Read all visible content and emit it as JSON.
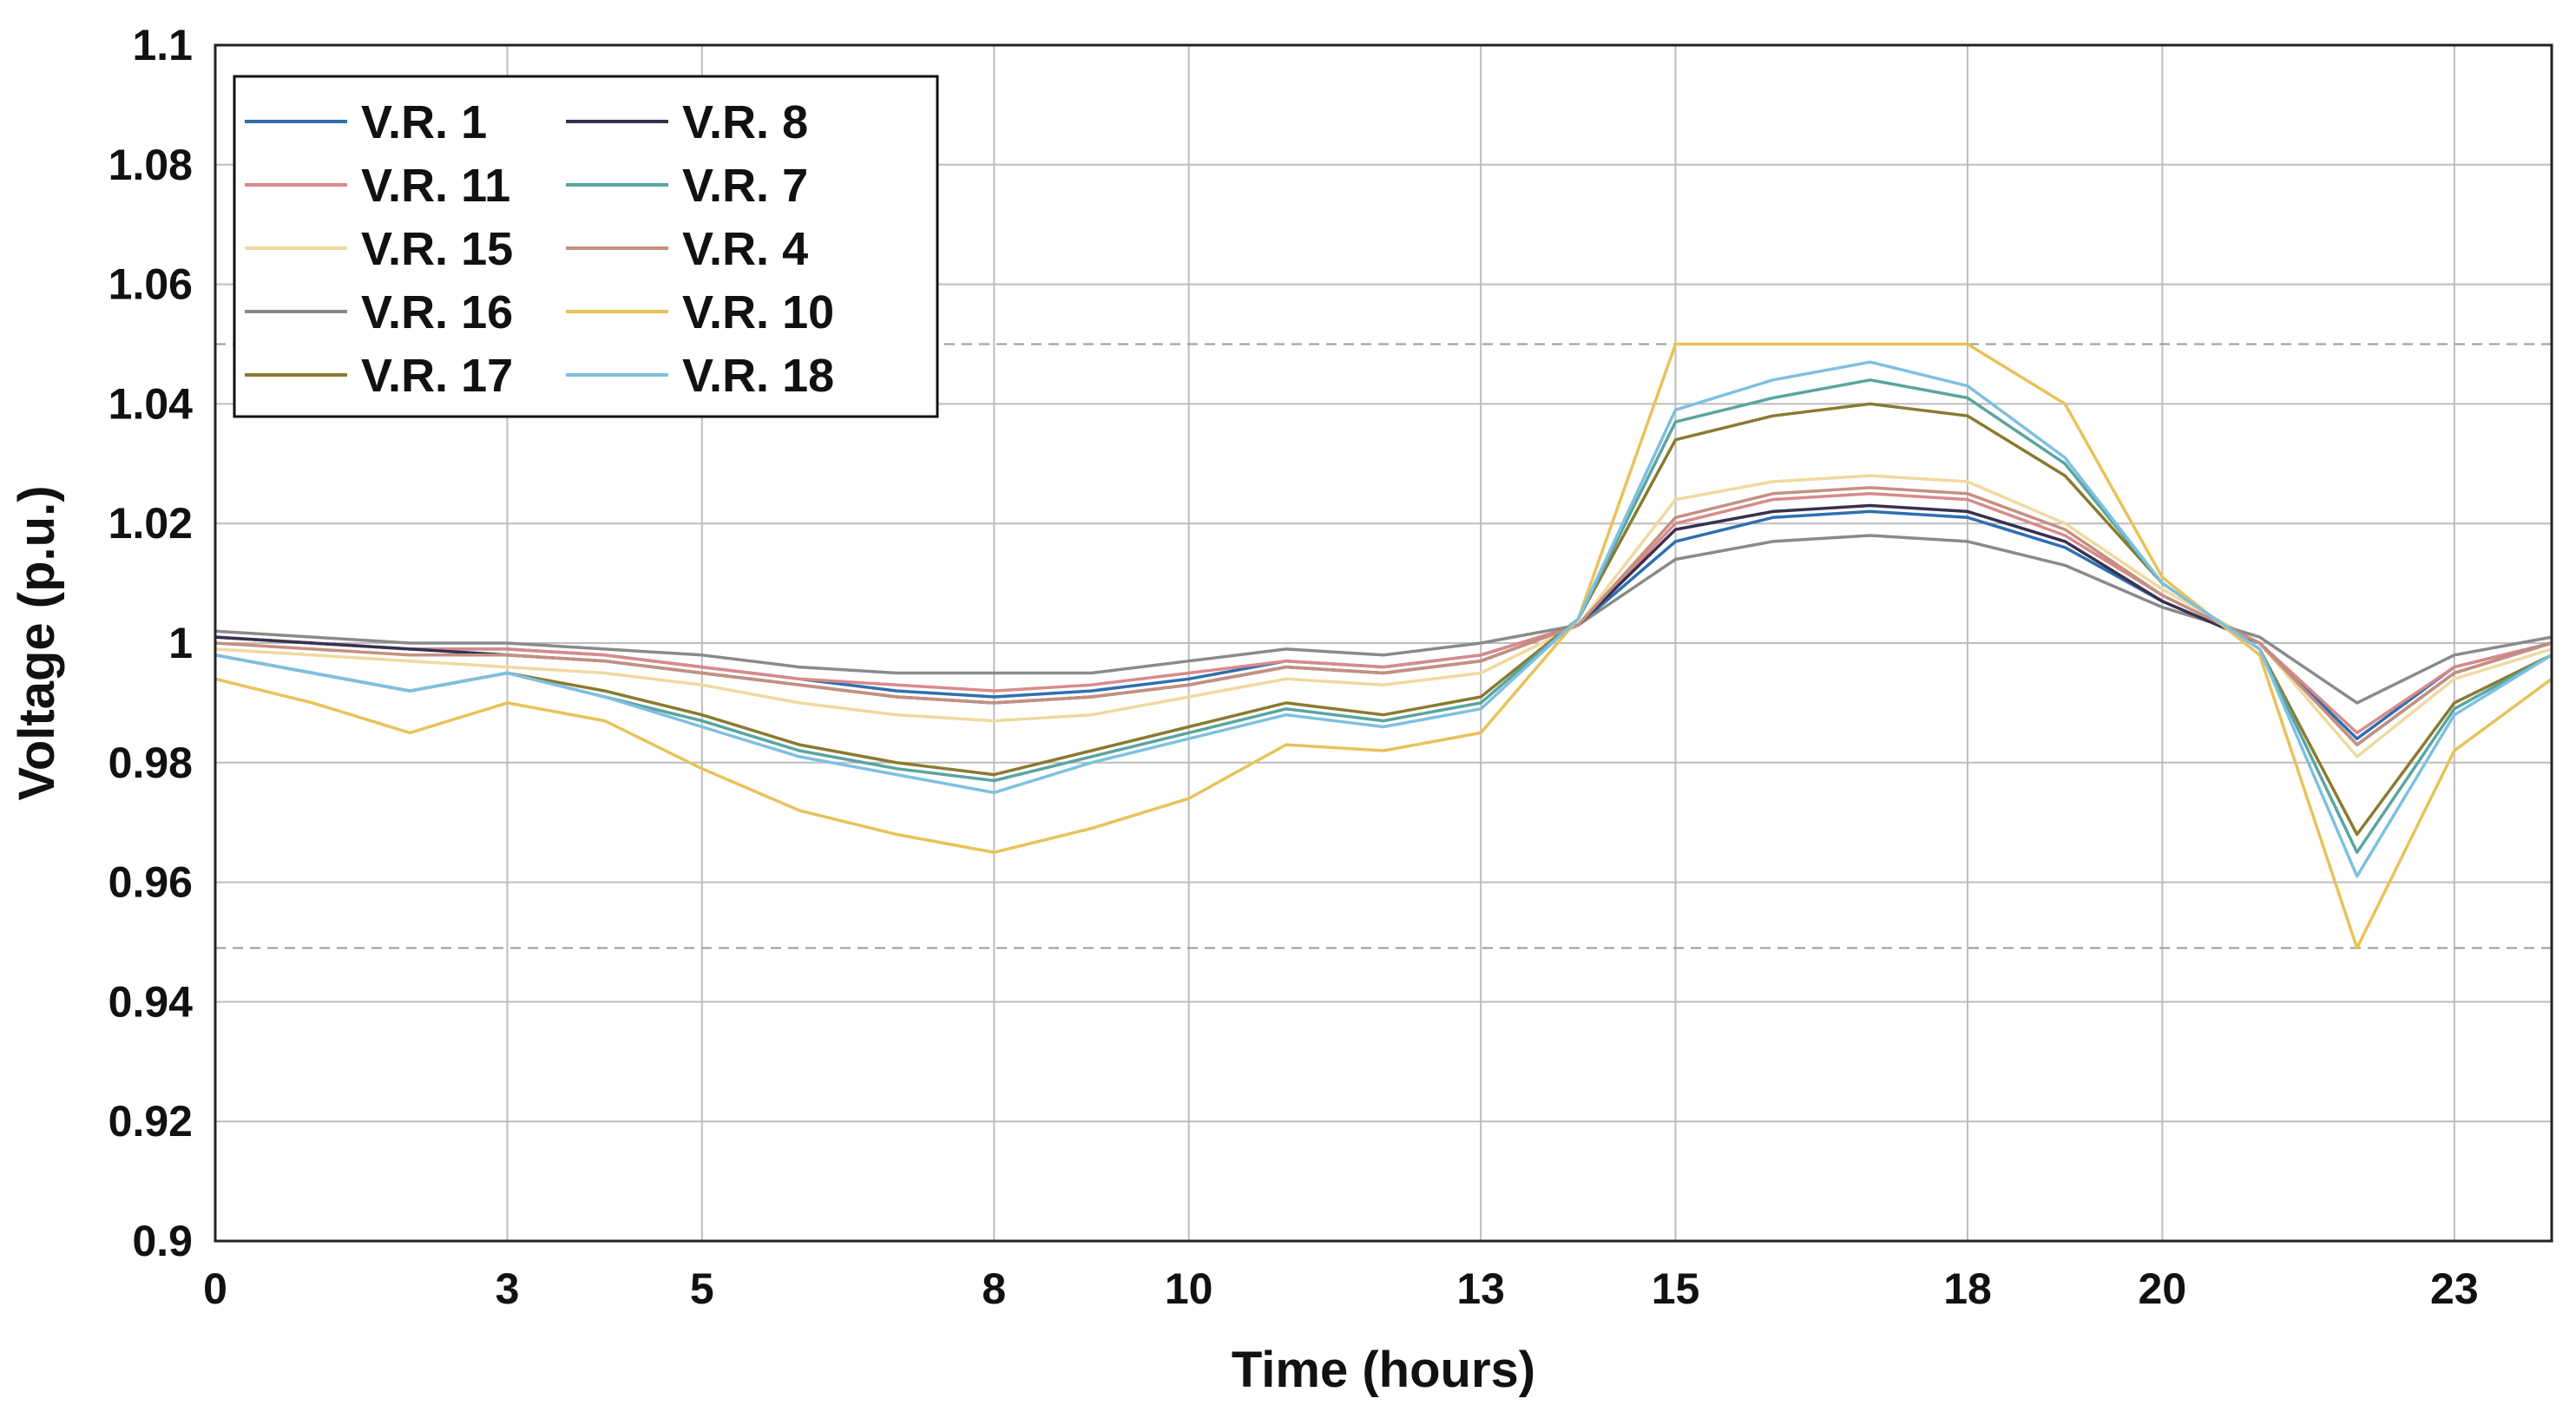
{
  "chart_data": {
    "type": "line",
    "title": "",
    "xlabel": "Time (hours)",
    "ylabel": "Voltage (p.u.)",
    "xlim": [
      0,
      24
    ],
    "ylim": [
      0.9,
      1.1
    ],
    "x_ticks": [
      0,
      3,
      5,
      8,
      10,
      13,
      15,
      18,
      20,
      23
    ],
    "x_tick_labels": [
      "0",
      "3",
      "5",
      "8",
      "10",
      "13",
      "15",
      "18",
      "20",
      "23"
    ],
    "y_ticks": [
      0.9,
      0.92,
      0.94,
      0.96,
      0.98,
      1.0,
      1.02,
      1.04,
      1.06,
      1.08,
      1.1
    ],
    "y_tick_labels": [
      "0.9",
      "0.92",
      "0.94",
      "0.96",
      "0.98",
      "1",
      "1.02",
      "1.04",
      "1.06",
      "1.08",
      "1.1"
    ],
    "grid": true,
    "legend_position": "top-left",
    "reference_lines": [
      1.05,
      0.949
    ],
    "x": [
      0,
      1,
      2,
      3,
      4,
      5,
      6,
      7,
      8,
      9,
      10,
      11,
      12,
      13,
      14,
      15,
      16,
      17,
      18,
      19,
      20,
      21,
      22,
      23,
      24
    ],
    "series": [
      {
        "name": "V.R. 1",
        "color": "#2f6fb0",
        "values": [
          1.001,
          1.0,
          0.999,
          0.999,
          0.998,
          0.996,
          0.994,
          0.992,
          0.991,
          0.992,
          0.994,
          0.997,
          0.996,
          0.998,
          1.003,
          1.017,
          1.021,
          1.022,
          1.021,
          1.016,
          1.007,
          1.0,
          0.984,
          0.996,
          1.0
        ]
      },
      {
        "name": "V.R. 11",
        "color": "#d98a8a",
        "values": [
          1.001,
          1.0,
          0.999,
          0.999,
          0.998,
          0.996,
          0.994,
          0.993,
          0.992,
          0.993,
          0.995,
          0.997,
          0.996,
          0.998,
          1.003,
          1.02,
          1.024,
          1.025,
          1.024,
          1.018,
          1.008,
          1.0,
          0.985,
          0.996,
          1.0
        ]
      },
      {
        "name": "V.R. 15",
        "color": "#f0d9a0",
        "values": [
          0.999,
          0.998,
          0.997,
          0.996,
          0.995,
          0.993,
          0.99,
          0.988,
          0.987,
          0.988,
          0.991,
          0.994,
          0.993,
          0.995,
          1.003,
          1.024,
          1.027,
          1.028,
          1.027,
          1.02,
          1.009,
          1.0,
          0.981,
          0.994,
          0.999
        ]
      },
      {
        "name": "V.R. 16",
        "color": "#8a8a8a",
        "values": [
          1.002,
          1.001,
          1.0,
          1.0,
          0.999,
          0.998,
          0.996,
          0.995,
          0.995,
          0.995,
          0.997,
          0.999,
          0.998,
          1.0,
          1.003,
          1.014,
          1.017,
          1.018,
          1.017,
          1.013,
          1.006,
          1.001,
          0.99,
          0.998,
          1.001
        ]
      },
      {
        "name": "V.R. 17",
        "color": "#8a7a30",
        "values": [
          0.998,
          0.995,
          0.992,
          0.995,
          0.992,
          0.988,
          0.983,
          0.98,
          0.978,
          0.982,
          0.986,
          0.99,
          0.988,
          0.991,
          1.004,
          1.034,
          1.038,
          1.04,
          1.038,
          1.028,
          1.01,
          0.999,
          0.968,
          0.99,
          0.998
        ]
      },
      {
        "name": "V.R. 8",
        "color": "#3a3050",
        "values": [
          1.001,
          1.0,
          0.999,
          0.998,
          0.997,
          0.995,
          0.993,
          0.991,
          0.99,
          0.991,
          0.993,
          0.996,
          0.995,
          0.997,
          1.003,
          1.019,
          1.022,
          1.023,
          1.022,
          1.017,
          1.007,
          1.0,
          0.983,
          0.995,
          1.0
        ]
      },
      {
        "name": "V.R. 7",
        "color": "#5aa5a0",
        "values": [
          0.998,
          0.995,
          0.992,
          0.995,
          0.991,
          0.987,
          0.982,
          0.979,
          0.977,
          0.981,
          0.985,
          0.989,
          0.987,
          0.99,
          1.004,
          1.037,
          1.041,
          1.044,
          1.041,
          1.03,
          1.01,
          0.999,
          0.965,
          0.989,
          0.998
        ]
      },
      {
        "name": "V.R. 4",
        "color": "#c49080",
        "values": [
          1.0,
          0.999,
          0.998,
          0.998,
          0.997,
          0.995,
          0.993,
          0.991,
          0.99,
          0.991,
          0.993,
          0.996,
          0.995,
          0.997,
          1.003,
          1.021,
          1.025,
          1.026,
          1.025,
          1.019,
          1.008,
          1.0,
          0.983,
          0.995,
          1.0
        ]
      },
      {
        "name": "V.R. 10",
        "color": "#e8c25a",
        "values": [
          0.994,
          0.99,
          0.985,
          0.99,
          0.987,
          0.979,
          0.972,
          0.968,
          0.965,
          0.969,
          0.974,
          0.983,
          0.982,
          0.985,
          1.004,
          1.05,
          1.05,
          1.05,
          1.05,
          1.04,
          1.011,
          0.998,
          0.949,
          0.982,
          0.994
        ]
      },
      {
        "name": "V.R. 18",
        "color": "#7ec0e0",
        "values": [
          0.998,
          0.995,
          0.992,
          0.995,
          0.991,
          0.986,
          0.981,
          0.978,
          0.975,
          0.98,
          0.984,
          0.988,
          0.986,
          0.989,
          1.004,
          1.039,
          1.044,
          1.047,
          1.043,
          1.031,
          1.01,
          0.999,
          0.961,
          0.988,
          0.998
        ]
      }
    ]
  }
}
